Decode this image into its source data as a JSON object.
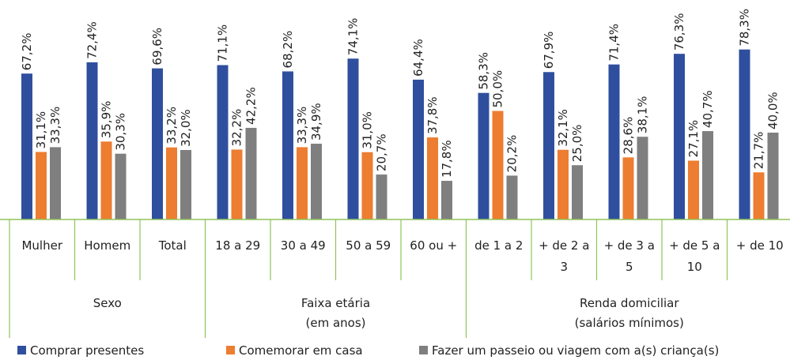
{
  "chart_data": {
    "type": "bar",
    "categories": [
      "Mulher",
      "Homem",
      "Total",
      "18 a 29",
      "30 a 49",
      "50 a 59",
      "60 ou +",
      "de 1 a 2",
      "+ de 2 a 3",
      "+ de 3 a 5",
      "+ de 5 a 10",
      "+ de 10"
    ],
    "groups": [
      {
        "label": "Sexo",
        "start": 0,
        "end": 2
      },
      {
        "label": "Faixa etária (em anos)",
        "start": 3,
        "end": 6
      },
      {
        "label": "Renda domiciliar (salários mínimos)",
        "start": 7,
        "end": 11
      }
    ],
    "series": [
      {
        "name": "Comprar presentes",
        "color": "#2f4f9e",
        "values": [
          67.2,
          72.4,
          69.6,
          71.1,
          68.2,
          74.1,
          64.4,
          58.3,
          67.9,
          71.4,
          76.3,
          78.3
        ],
        "value_labels": [
          "67,2%",
          "72,4%",
          "69,6%",
          "71,1%",
          "68,2%",
          "74,1%",
          "64,4%",
          "58,3%",
          "67,9%",
          "71,4%",
          "76,3%",
          "78,3%"
        ]
      },
      {
        "name": "Comemorar em casa",
        "color": "#ed7d31",
        "values": [
          31.1,
          35.9,
          33.2,
          32.2,
          33.3,
          31.0,
          37.8,
          50.0,
          32.1,
          28.6,
          27.1,
          21.7
        ],
        "value_labels": [
          "31,1%",
          "35,9%",
          "33,2%",
          "32,2%",
          "33,3%",
          "31,0%",
          "37,8%",
          "50,0%",
          "32,1%",
          "28,6%",
          "27,1%",
          "21,7%"
        ]
      },
      {
        "name": "Fazer um passeio ou viagem com a(s) criança(s)",
        "color": "#7f7f7f",
        "values": [
          33.3,
          30.3,
          32.0,
          42.2,
          34.9,
          20.7,
          17.8,
          20.2,
          25.0,
          38.1,
          40.7,
          40.0
        ],
        "value_labels": [
          "33,3%",
          "30,3%",
          "32,0%",
          "42,2%",
          "34,9%",
          "20,7%",
          "17,8%",
          "20,2%",
          "25,0%",
          "38,1%",
          "40,7%",
          "40,0%"
        ]
      }
    ]
  }
}
